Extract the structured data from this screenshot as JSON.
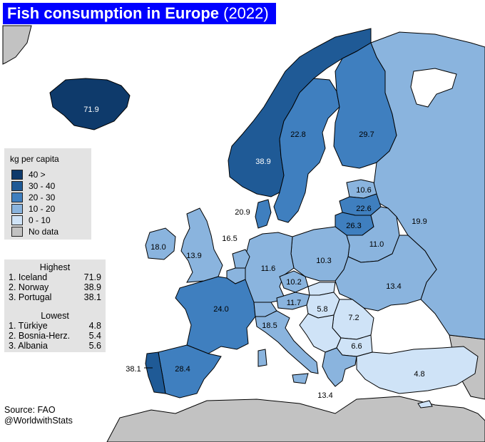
{
  "title": {
    "bold": "Fish consumption in Europe",
    "year": "(2022)"
  },
  "legend": {
    "title": "kg per capita",
    "items": [
      {
        "label": "40 >",
        "color": "#0e3a6b"
      },
      {
        "label": "30 - 40",
        "color": "#1f5a96"
      },
      {
        "label": "20 - 30",
        "color": "#3f7fbf"
      },
      {
        "label": "10 - 20",
        "color": "#8ab4de"
      },
      {
        "label": "0 - 10",
        "color": "#cfe3f7"
      },
      {
        "label": "No data",
        "color": "#c2c2c2"
      }
    ]
  },
  "rankings": {
    "highest_title": "Highest",
    "highest": [
      {
        "name": "1. Iceland",
        "value": "71.9"
      },
      {
        "name": "2. Norway",
        "value": "38.9"
      },
      {
        "name": "3. Portugal",
        "value": "38.1"
      }
    ],
    "lowest_title": "Lowest",
    "lowest": [
      {
        "name": "1. Türkiye",
        "value": "4.8"
      },
      {
        "name": "2. Bosnia-Herz.",
        "value": "5.4"
      },
      {
        "name": "3. Albania",
        "value": "5.6"
      }
    ]
  },
  "source": {
    "line1": "Source: FAO",
    "line2": "@WorldwithStats"
  },
  "colors": {
    "sea": "#ffffff",
    "border": "#000000",
    "dark_label": "#ffffff"
  },
  "countries": {
    "iceland": "71.9",
    "norway": "38.9",
    "sweden": "22.8",
    "finland": "29.7",
    "russia": "19.9",
    "estonia": "10.6",
    "latvia": "22.6",
    "lithuania": "26.3",
    "belarus": "11.0",
    "ukraine": "13.4",
    "poland": "10.3",
    "germany": "11.6",
    "denmark": "20.9",
    "netherlands": "16.5",
    "uk": "13.9",
    "ireland": "18.0",
    "france": "24.0",
    "czechia": "10.2",
    "austria": "11.7",
    "hungary": "5.8",
    "romania": "7.2",
    "bulgaria": "6.6",
    "italy": "18.5",
    "spain": "28.4",
    "portugal": "38.1",
    "greece": "13.4",
    "turkiye": "4.8"
  }
}
